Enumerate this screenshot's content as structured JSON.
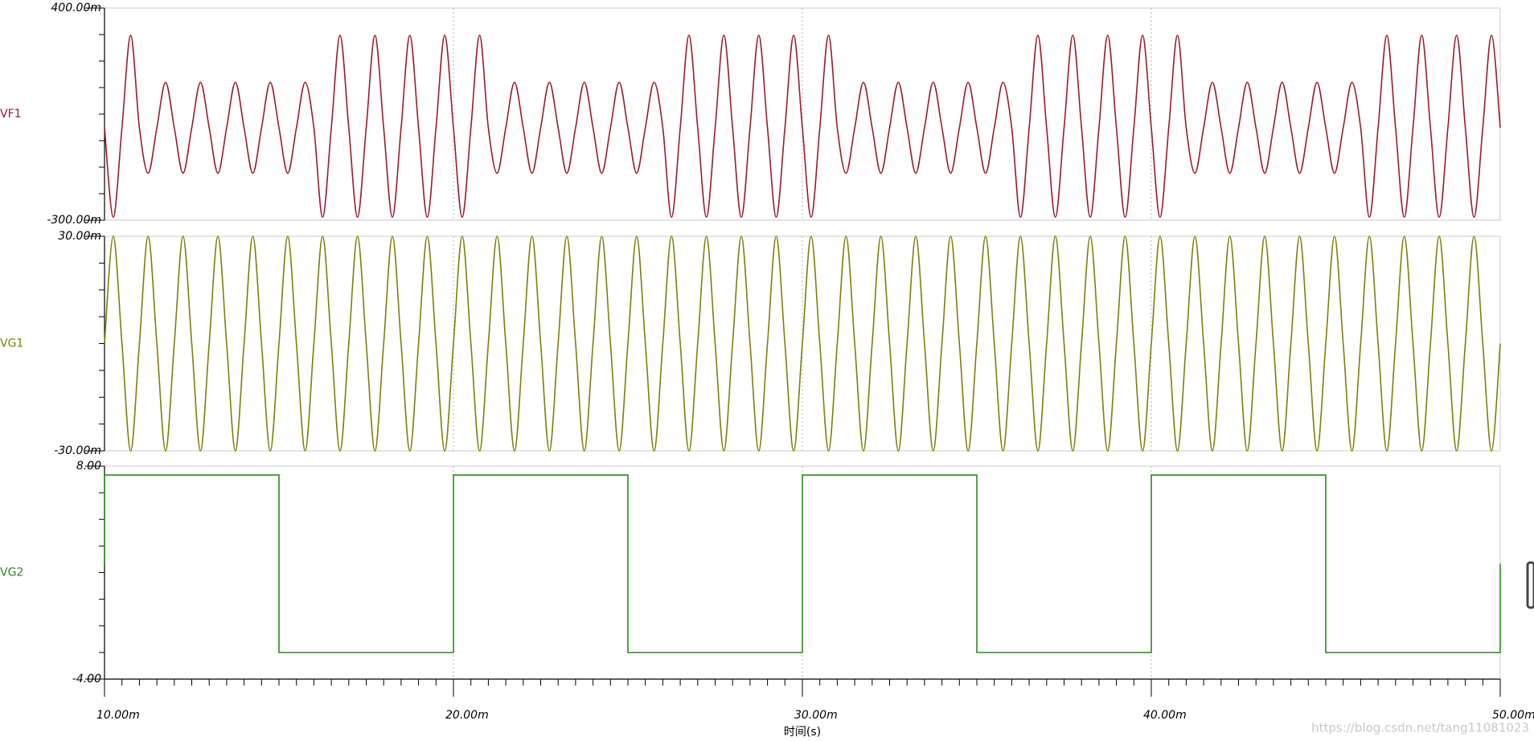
{
  "chart_data": [
    {
      "type": "line",
      "interpolation": "spline",
      "series": [
        {
          "name": "VF1",
          "color": "#9b1b2b",
          "values": [
            5,
            -290,
            5,
            310,
            5,
            -145,
            5,
            155,
            5,
            -145,
            5,
            155,
            5,
            -145,
            5,
            155,
            5,
            -145,
            5,
            155,
            5,
            -145,
            5,
            155,
            5,
            -290,
            5,
            310,
            5,
            -290,
            5,
            310,
            5,
            -290,
            5,
            310,
            5,
            -290,
            5,
            310,
            5,
            -290,
            5,
            310,
            5,
            -145,
            5,
            155,
            5,
            -145,
            5,
            155,
            5,
            -145,
            5,
            155,
            5,
            -145,
            5,
            155,
            5,
            -145,
            5,
            155,
            5,
            -290,
            5,
            310,
            5,
            -290,
            5,
            310,
            5,
            -290,
            5,
            310,
            5,
            -290,
            5,
            310,
            5,
            -290,
            5,
            310,
            5,
            -145,
            5,
            155,
            5,
            -145,
            5,
            155,
            5,
            -145,
            5,
            155,
            5,
            -145,
            5,
            155,
            5,
            -145,
            5,
            155,
            5,
            -290,
            5,
            310,
            5,
            -290,
            5,
            310,
            5,
            -290,
            5,
            310,
            5,
            -290,
            5,
            310,
            5,
            -290,
            5,
            310,
            5,
            -145,
            5,
            155,
            5,
            -145,
            5,
            155,
            5,
            -145,
            5,
            155,
            5,
            -145,
            5,
            155,
            5,
            -145,
            5,
            155,
            5,
            -290,
            5,
            310,
            5,
            -290,
            5,
            310,
            5,
            -290,
            5,
            310,
            5,
            -290,
            5,
            310,
            5
          ]
        }
      ],
      "x": [
        10,
        10.25,
        10.5,
        10.75,
        11,
        11.25,
        11.5,
        11.75,
        12,
        12.25,
        12.5,
        12.75,
        13,
        13.25,
        13.5,
        13.75,
        14,
        14.25,
        14.5,
        14.75,
        15,
        15.25,
        15.5,
        15.75,
        16,
        16.25,
        16.5,
        16.75,
        17,
        17.25,
        17.5,
        17.75,
        18,
        18.25,
        18.5,
        18.75,
        19,
        19.25,
        19.5,
        19.75,
        20,
        20.25,
        20.5,
        20.75,
        21,
        21.25,
        21.5,
        21.75,
        22,
        22.25,
        22.5,
        22.75,
        23,
        23.25,
        23.5,
        23.75,
        24,
        24.25,
        24.5,
        24.75,
        25,
        25.25,
        25.5,
        25.75,
        26,
        26.25,
        26.5,
        26.75,
        27,
        27.25,
        27.5,
        27.75,
        28,
        28.25,
        28.5,
        28.75,
        29,
        29.25,
        29.5,
        29.75,
        30,
        30.25,
        30.5,
        30.75,
        31,
        31.25,
        31.5,
        31.75,
        32,
        32.25,
        32.5,
        32.75,
        33,
        33.25,
        33.5,
        33.75,
        34,
        34.25,
        34.5,
        34.75,
        35,
        35.25,
        35.5,
        35.75,
        36,
        36.25,
        36.5,
        36.75,
        37,
        37.25,
        37.5,
        37.75,
        38,
        38.25,
        38.5,
        38.75,
        39,
        39.25,
        39.5,
        39.75,
        40,
        40.25,
        40.5,
        40.75,
        41,
        41.25,
        41.5,
        41.75,
        42,
        42.25,
        42.5,
        42.75,
        43,
        43.25,
        43.5,
        43.75,
        44,
        44.25,
        44.5,
        44.75,
        45,
        45.25,
        45.5,
        45.75,
        46,
        46.25,
        46.5,
        46.75,
        47,
        47.25,
        47.5,
        47.75,
        48,
        48.25,
        48.5,
        48.75,
        49,
        49.25,
        49.5,
        49.75,
        50
      ],
      "xlim": [
        10,
        50
      ],
      "ylim": [
        -300,
        400
      ],
      "yticks": [
        {
          "value": 400,
          "label": "400.00m"
        },
        {
          "value": -300,
          "label": "-300.00m"
        }
      ],
      "yminorticks": [
        312.5,
        225,
        137.5,
        50,
        -37.5,
        -125,
        -212.5
      ]
    },
    {
      "type": "line",
      "interpolation": "spline",
      "series": [
        {
          "name": "VG1",
          "color": "#7f7f0a",
          "values": [
            0,
            30,
            0,
            -30,
            0,
            30,
            0,
            -30,
            0,
            30,
            0,
            -30,
            0,
            30,
            0,
            -30,
            0,
            30,
            0,
            -30,
            0,
            30,
            0,
            -30,
            0,
            30,
            0,
            -30,
            0,
            30,
            0,
            -30,
            0,
            30,
            0,
            -30,
            0,
            30,
            0,
            -30,
            0,
            30,
            0,
            -30,
            0,
            30,
            0,
            -30,
            0,
            30,
            0,
            -30,
            0,
            30,
            0,
            -30,
            0,
            30,
            0,
            -30,
            0,
            30,
            0,
            -30,
            0,
            30,
            0,
            -30,
            0,
            30,
            0,
            -30,
            0,
            30,
            0,
            -30,
            0,
            30,
            0,
            -30,
            0,
            30,
            0,
            -30,
            0,
            30,
            0,
            -30,
            0,
            30,
            0,
            -30,
            0,
            30,
            0,
            -30,
            0,
            30,
            0,
            -30,
            0,
            30,
            0,
            -30,
            0,
            30,
            0,
            -30,
            0,
            30,
            0,
            -30,
            0,
            30,
            0,
            -30,
            0,
            30,
            0,
            -30,
            0,
            30,
            0,
            -30,
            0,
            30,
            0,
            -30,
            0,
            30,
            0,
            -30,
            0,
            30,
            0,
            -30,
            0,
            30,
            0,
            -30,
            0,
            30,
            0,
            -30,
            0,
            30,
            0,
            -30,
            0,
            30,
            0,
            -30,
            0,
            30,
            0,
            -30,
            0,
            30,
            0,
            -30,
            0
          ]
        }
      ],
      "x": [
        10,
        10.25,
        10.5,
        10.75,
        11,
        11.25,
        11.5,
        11.75,
        12,
        12.25,
        12.5,
        12.75,
        13,
        13.25,
        13.5,
        13.75,
        14,
        14.25,
        14.5,
        14.75,
        15,
        15.25,
        15.5,
        15.75,
        16,
        16.25,
        16.5,
        16.75,
        17,
        17.25,
        17.5,
        17.75,
        18,
        18.25,
        18.5,
        18.75,
        19,
        19.25,
        19.5,
        19.75,
        20,
        20.25,
        20.5,
        20.75,
        21,
        21.25,
        21.5,
        21.75,
        22,
        22.25,
        22.5,
        22.75,
        23,
        23.25,
        23.5,
        23.75,
        24,
        24.25,
        24.5,
        24.75,
        25,
        25.25,
        25.5,
        25.75,
        26,
        26.25,
        26.5,
        26.75,
        27,
        27.25,
        27.5,
        27.75,
        28,
        28.25,
        28.5,
        28.75,
        29,
        29.25,
        29.5,
        29.75,
        30,
        30.25,
        30.5,
        30.75,
        31,
        31.25,
        31.5,
        31.75,
        32,
        32.25,
        32.5,
        32.75,
        33,
        33.25,
        33.5,
        33.75,
        34,
        34.25,
        34.5,
        34.75,
        35,
        35.25,
        35.5,
        35.75,
        36,
        36.25,
        36.5,
        36.75,
        37,
        37.25,
        37.5,
        37.75,
        38,
        38.25,
        38.5,
        38.75,
        39,
        39.25,
        39.5,
        39.75,
        40,
        40.25,
        40.5,
        40.75,
        41,
        41.25,
        41.5,
        41.75,
        42,
        42.25,
        42.5,
        42.75,
        43,
        43.25,
        43.5,
        43.75,
        44,
        44.25,
        44.5,
        44.75,
        45,
        45.25,
        45.5,
        45.75,
        46,
        46.25,
        46.5,
        46.75,
        47,
        47.25,
        47.5,
        47.75,
        48,
        48.25,
        48.5,
        48.75,
        49,
        49.25,
        49.5,
        49.75,
        50
      ],
      "xlim": [
        10,
        50
      ],
      "ylim": [
        -30,
        30
      ],
      "yticks": [
        {
          "value": 30,
          "label": "30.00m"
        },
        {
          "value": -30,
          "label": "-30.00m"
        }
      ],
      "yminorticks": [
        22.5,
        15,
        7.5,
        0,
        -7.5,
        -15,
        -22.5
      ]
    },
    {
      "type": "line",
      "interpolation": "linear",
      "series": [
        {
          "name": "VG2",
          "color": "#2a8a1c",
          "values": [
            2.5,
            7.5,
            7.5,
            -2.5,
            -2.5,
            7.5,
            7.5,
            -2.5,
            -2.5,
            7.5,
            7.5,
            -2.5,
            -2.5,
            7.5,
            7.5,
            -2.5,
            -2.5,
            2.5
          ]
        }
      ],
      "x": [
        10,
        10,
        15,
        15,
        20,
        20,
        25,
        25,
        30,
        30,
        35,
        35,
        40,
        40,
        45,
        45,
        50,
        50
      ],
      "xlim": [
        10,
        50
      ],
      "ylim": [
        -4,
        8
      ],
      "yticks": [
        {
          "value": 8,
          "label": "8.00"
        },
        {
          "value": -4,
          "label": "-4.00"
        }
      ],
      "yminorticks": [
        6.5,
        5,
        3.5,
        2,
        0.5,
        -1,
        -2.5
      ],
      "xticks": [
        {
          "value": 10,
          "label": "10.00m"
        },
        {
          "value": 20,
          "label": "20.00m"
        },
        {
          "value": 30,
          "label": "30.00m"
        },
        {
          "value": 40,
          "label": "40.00m"
        },
        {
          "value": 50,
          "label": "50.00m"
        }
      ],
      "xminorticks": [
        10.5,
        11,
        11.5,
        12,
        12.5,
        13,
        13.5,
        14,
        14.5,
        15,
        15.5,
        16,
        16.5,
        17,
        17.5,
        18,
        18.5,
        19,
        19.5,
        20.5,
        21,
        21.5,
        22,
        22.5,
        23,
        23.5,
        24,
        24.5,
        25,
        25.5,
        26,
        26.5,
        27,
        27.5,
        28,
        28.5,
        29,
        29.5,
        30.5,
        31,
        31.5,
        32,
        32.5,
        33,
        33.5,
        34,
        34.5,
        35,
        35.5,
        36,
        36.5,
        37,
        37.5,
        38,
        38.5,
        39,
        39.5,
        40.5,
        41,
        41.5,
        42,
        42.5,
        43,
        43.5,
        44,
        44.5,
        45,
        45.5,
        46,
        46.5,
        47,
        47.5,
        48,
        48.5,
        49,
        49.5
      ],
      "xlabel": "时间(s)",
      "watermark": "https://blog.csdn.net/tang11081023",
      "grid": true
    }
  ]
}
